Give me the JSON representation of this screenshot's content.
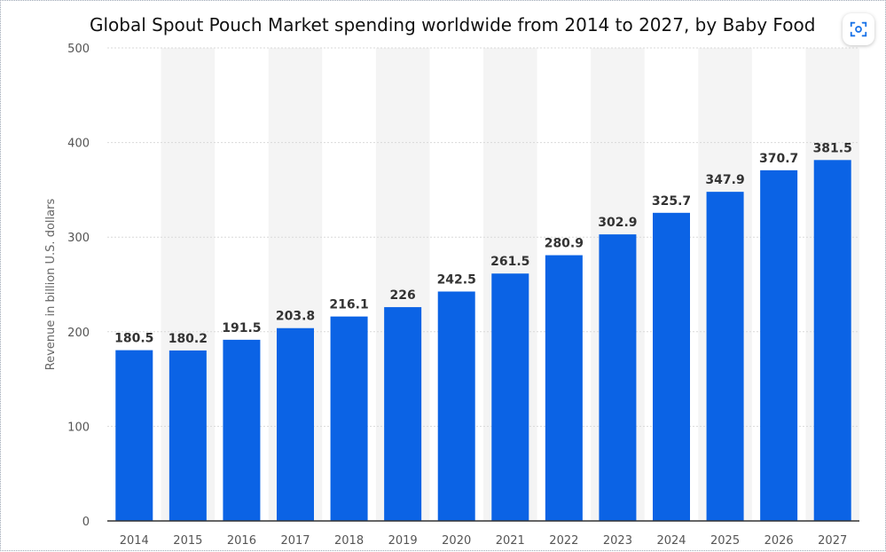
{
  "chart_data": {
    "type": "bar",
    "title": "Global Spout Pouch Market spending worldwide from 2014 to 2027, by Baby Food",
    "ylabel": "Revenue in billion U.S. dollars",
    "xlabel": "",
    "ylim": [
      0,
      500
    ],
    "yticks": [
      "0",
      "100",
      "200",
      "300",
      "400",
      "500"
    ],
    "categories": [
      "2014",
      "2015",
      "2016",
      "2017",
      "2018",
      "2019",
      "2020",
      "2021",
      "2022",
      "2023",
      "2024",
      "2025",
      "2026",
      "2027"
    ],
    "values": [
      180.5,
      180.2,
      191.5,
      203.8,
      216.1,
      226,
      242.5,
      261.5,
      280.9,
      302.9,
      325.7,
      347.9,
      370.7,
      381.5
    ],
    "value_labels": [
      "180.5",
      "180.2",
      "191.5",
      "203.8",
      "216.1",
      "226",
      "242.5",
      "261.5",
      "280.9",
      "302.9",
      "325.7",
      "347.9",
      "370.7",
      "381.5"
    ],
    "bar_color": "#0b63e5",
    "grid": true,
    "alternating_column_shading": true
  },
  "toolbar": {
    "lens_icon": "visual-search-icon"
  }
}
